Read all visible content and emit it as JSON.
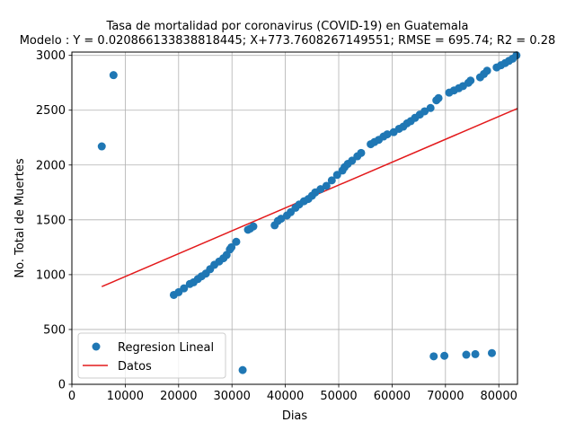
{
  "chart_data": {
    "type": "scatter",
    "title_line1": "Tasa de mortalidad por coronavirus (COVID-19) en Guatemala",
    "title_line2": "Modelo : Y = 0.020866133838818445; X+773.7608267149551; RMSE = 695.74; R2 = 0.28",
    "xlabel": "Dias",
    "ylabel": "No. Total de Muertes",
    "xlim": [
      0,
      83500
    ],
    "ylim": [
      0,
      3030
    ],
    "grid": true,
    "legend_position": "lower-left",
    "xticks": [
      0,
      10000,
      20000,
      30000,
      40000,
      50000,
      60000,
      70000,
      80000
    ],
    "yticks": [
      0,
      500,
      1000,
      1500,
      2000,
      2500,
      3000
    ],
    "series": [
      {
        "name": "Regresion Lineal",
        "kind": "scatter",
        "color": "#1f77b4",
        "points": [
          [
            5600,
            2170
          ],
          [
            7800,
            2820
          ],
          [
            19100,
            815
          ],
          [
            20000,
            840
          ],
          [
            21000,
            875
          ],
          [
            22100,
            915
          ],
          [
            22800,
            930
          ],
          [
            23600,
            960
          ],
          [
            24300,
            985
          ],
          [
            25100,
            1010
          ],
          [
            25900,
            1050
          ],
          [
            26700,
            1090
          ],
          [
            27600,
            1120
          ],
          [
            28400,
            1150
          ],
          [
            29000,
            1180
          ],
          [
            29600,
            1230
          ],
          [
            29900,
            1250
          ],
          [
            30800,
            1300
          ],
          [
            32000,
            130
          ],
          [
            33000,
            1410
          ],
          [
            33400,
            1420
          ],
          [
            34000,
            1440
          ],
          [
            38000,
            1450
          ],
          [
            38600,
            1490
          ],
          [
            39200,
            1510
          ],
          [
            40300,
            1540
          ],
          [
            41000,
            1570
          ],
          [
            41900,
            1610
          ],
          [
            42600,
            1640
          ],
          [
            43500,
            1670
          ],
          [
            44300,
            1690
          ],
          [
            45000,
            1720
          ],
          [
            45600,
            1750
          ],
          [
            46600,
            1780
          ],
          [
            47700,
            1810
          ],
          [
            48700,
            1860
          ],
          [
            49700,
            1910
          ],
          [
            50700,
            1950
          ],
          [
            51100,
            1980
          ],
          [
            51700,
            2010
          ],
          [
            52500,
            2040
          ],
          [
            53500,
            2080
          ],
          [
            54200,
            2110
          ],
          [
            56000,
            2190
          ],
          [
            56700,
            2210
          ],
          [
            57500,
            2230
          ],
          [
            58400,
            2260
          ],
          [
            59100,
            2280
          ],
          [
            60300,
            2300
          ],
          [
            61300,
            2330
          ],
          [
            62100,
            2350
          ],
          [
            62800,
            2380
          ],
          [
            63500,
            2400
          ],
          [
            64300,
            2430
          ],
          [
            65200,
            2460
          ],
          [
            66100,
            2490
          ],
          [
            67200,
            2520
          ],
          [
            67800,
            255
          ],
          [
            68300,
            2590
          ],
          [
            68700,
            2610
          ],
          [
            69800,
            260
          ],
          [
            70700,
            2660
          ],
          [
            71600,
            2680
          ],
          [
            72500,
            2700
          ],
          [
            73300,
            2720
          ],
          [
            73900,
            270
          ],
          [
            74300,
            2750
          ],
          [
            74700,
            2770
          ],
          [
            75600,
            275
          ],
          [
            76500,
            2800
          ],
          [
            77200,
            2830
          ],
          [
            77800,
            2860
          ],
          [
            78700,
            285
          ],
          [
            79600,
            2890
          ],
          [
            80400,
            2910
          ],
          [
            81200,
            2930
          ],
          [
            81900,
            2950
          ],
          [
            82600,
            2970
          ],
          [
            83300,
            3000
          ]
        ]
      },
      {
        "name": "Datos",
        "kind": "line",
        "color": "#e31a1c",
        "points": [
          [
            5600,
            891
          ],
          [
            83500,
            2516
          ]
        ]
      }
    ]
  }
}
